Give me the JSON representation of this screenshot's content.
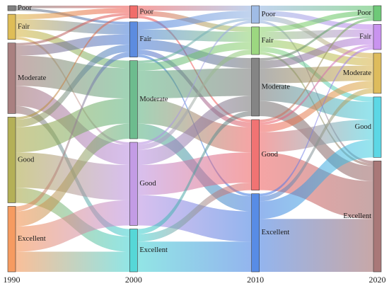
{
  "chart_data": {
    "type": "sankey",
    "title": "",
    "stages": [
      "1990",
      "2000",
      "2010",
      "2020"
    ],
    "categories": [
      "Poor",
      "Fair",
      "Moderate",
      "Good",
      "Excellent"
    ],
    "node_colors": {
      "1990": {
        "Poor": "#6b6b6b",
        "Fair": "#d9b23a",
        "Moderate": "#9a6a6a",
        "Good": "#a7a23a",
        "Excellent": "#f58a45"
      },
      "2000": {
        "Poor": "#ef5350",
        "Fair": "#3f78d9",
        "Moderate": "#53b07a",
        "Good": "#b88be0",
        "Excellent": "#38d0d0"
      },
      "2010": {
        "Poor": "#8fb0e0",
        "Fair": "#8bd06a",
        "Moderate": "#707070",
        "Good": "#ee5a5a",
        "Excellent": "#3b78e0"
      },
      "2020": {
        "Poor": "#55c060",
        "Fair": "#c080ec",
        "Moderate": "#d8b040",
        "Good": "#40d0e0",
        "Excellent": "#9a6060"
      }
    },
    "node_values": {
      "1990": {
        "Poor": 2,
        "Fair": 10,
        "Moderate": 28,
        "Good": 34,
        "Excellent": 26
      },
      "2000": {
        "Poor": 5,
        "Fair": 14,
        "Moderate": 31,
        "Good": 33,
        "Excellent": 17
      },
      "2010": {
        "Poor": 7,
        "Fair": 11,
        "Moderate": 23,
        "Good": 28,
        "Excellent": 31
      },
      "2020": {
        "Poor": 6,
        "Fair": 10,
        "Moderate": 16,
        "Good": 24,
        "Excellent": 44
      }
    },
    "flows": [
      {
        "from_stage": "1990",
        "to_stage": "2000",
        "from": "Poor",
        "to": "Poor",
        "value": 1
      },
      {
        "from_stage": "1990",
        "to_stage": "2000",
        "from": "Poor",
        "to": "Fair",
        "value": 1
      },
      {
        "from_stage": "1990",
        "to_stage": "2000",
        "from": "Fair",
        "to": "Poor",
        "value": 2
      },
      {
        "from_stage": "1990",
        "to_stage": "2000",
        "from": "Fair",
        "to": "Fair",
        "value": 4
      },
      {
        "from_stage": "1990",
        "to_stage": "2000",
        "from": "Fair",
        "to": "Moderate",
        "value": 3
      },
      {
        "from_stage": "1990",
        "to_stage": "2000",
        "from": "Fair",
        "to": "Good",
        "value": 1
      },
      {
        "from_stage": "1990",
        "to_stage": "2000",
        "from": "Moderate",
        "to": "Poor",
        "value": 1
      },
      {
        "from_stage": "1990",
        "to_stage": "2000",
        "from": "Moderate",
        "to": "Fair",
        "value": 4
      },
      {
        "from_stage": "1990",
        "to_stage": "2000",
        "from": "Moderate",
        "to": "Moderate",
        "value": 12
      },
      {
        "from_stage": "1990",
        "to_stage": "2000",
        "from": "Moderate",
        "to": "Good",
        "value": 8
      },
      {
        "from_stage": "1990",
        "to_stage": "2000",
        "from": "Moderate",
        "to": "Excellent",
        "value": 3
      },
      {
        "from_stage": "1990",
        "to_stage": "2000",
        "from": "Good",
        "to": "Poor",
        "value": 1
      },
      {
        "from_stage": "1990",
        "to_stage": "2000",
        "from": "Good",
        "to": "Fair",
        "value": 3
      },
      {
        "from_stage": "1990",
        "to_stage": "2000",
        "from": "Good",
        "to": "Moderate",
        "value": 10
      },
      {
        "from_stage": "1990",
        "to_stage": "2000",
        "from": "Good",
        "to": "Good",
        "value": 14
      },
      {
        "from_stage": "1990",
        "to_stage": "2000",
        "from": "Good",
        "to": "Excellent",
        "value": 6
      },
      {
        "from_stage": "1990",
        "to_stage": "2000",
        "from": "Excellent",
        "to": "Fair",
        "value": 2
      },
      {
        "from_stage": "1990",
        "to_stage": "2000",
        "from": "Excellent",
        "to": "Moderate",
        "value": 6
      },
      {
        "from_stage": "1990",
        "to_stage": "2000",
        "from": "Excellent",
        "to": "Good",
        "value": 10
      },
      {
        "from_stage": "1990",
        "to_stage": "2000",
        "from": "Excellent",
        "to": "Excellent",
        "value": 8
      },
      {
        "from_stage": "2000",
        "to_stage": "2010",
        "from": "Poor",
        "to": "Poor",
        "value": 2
      },
      {
        "from_stage": "2000",
        "to_stage": "2010",
        "from": "Poor",
        "to": "Fair",
        "value": 2
      },
      {
        "from_stage": "2000",
        "to_stage": "2010",
        "from": "Poor",
        "to": "Good",
        "value": 1
      },
      {
        "from_stage": "2000",
        "to_stage": "2010",
        "from": "Fair",
        "to": "Poor",
        "value": 3
      },
      {
        "from_stage": "2000",
        "to_stage": "2010",
        "from": "Fair",
        "to": "Fair",
        "value": 4
      },
      {
        "from_stage": "2000",
        "to_stage": "2010",
        "from": "Fair",
        "to": "Moderate",
        "value": 4
      },
      {
        "from_stage": "2000",
        "to_stage": "2010",
        "from": "Fair",
        "to": "Good",
        "value": 2
      },
      {
        "from_stage": "2000",
        "to_stage": "2010",
        "from": "Fair",
        "to": "Excellent",
        "value": 1
      },
      {
        "from_stage": "2000",
        "to_stage": "2010",
        "from": "Moderate",
        "to": "Poor",
        "value": 1
      },
      {
        "from_stage": "2000",
        "to_stage": "2010",
        "from": "Moderate",
        "to": "Fair",
        "value": 3
      },
      {
        "from_stage": "2000",
        "to_stage": "2010",
        "from": "Moderate",
        "to": "Moderate",
        "value": 11
      },
      {
        "from_stage": "2000",
        "to_stage": "2010",
        "from": "Moderate",
        "to": "Good",
        "value": 10
      },
      {
        "from_stage": "2000",
        "to_stage": "2010",
        "from": "Moderate",
        "to": "Excellent",
        "value": 6
      },
      {
        "from_stage": "2000",
        "to_stage": "2010",
        "from": "Good",
        "to": "Poor",
        "value": 1
      },
      {
        "from_stage": "2000",
        "to_stage": "2010",
        "from": "Good",
        "to": "Fair",
        "value": 2
      },
      {
        "from_stage": "2000",
        "to_stage": "2010",
        "from": "Good",
        "to": "Moderate",
        "value": 6
      },
      {
        "from_stage": "2000",
        "to_stage": "2010",
        "from": "Good",
        "to": "Good",
        "value": 12
      },
      {
        "from_stage": "2000",
        "to_stage": "2010",
        "from": "Good",
        "to": "Excellent",
        "value": 12
      },
      {
        "from_stage": "2000",
        "to_stage": "2010",
        "from": "Excellent",
        "to": "Moderate",
        "value": 2
      },
      {
        "from_stage": "2000",
        "to_stage": "2010",
        "from": "Excellent",
        "to": "Good",
        "value": 3
      },
      {
        "from_stage": "2000",
        "to_stage": "2010",
        "from": "Excellent",
        "to": "Excellent",
        "value": 12
      },
      {
        "from_stage": "2010",
        "to_stage": "2020",
        "from": "Poor",
        "to": "Poor",
        "value": 2
      },
      {
        "from_stage": "2010",
        "to_stage": "2020",
        "from": "Poor",
        "to": "Fair",
        "value": 2
      },
      {
        "from_stage": "2010",
        "to_stage": "2020",
        "from": "Poor",
        "to": "Moderate",
        "value": 2
      },
      {
        "from_stage": "2010",
        "to_stage": "2020",
        "from": "Poor",
        "to": "Excellent",
        "value": 1
      },
      {
        "from_stage": "2010",
        "to_stage": "2020",
        "from": "Fair",
        "to": "Poor",
        "value": 2
      },
      {
        "from_stage": "2010",
        "to_stage": "2020",
        "from": "Fair",
        "to": "Fair",
        "value": 3
      },
      {
        "from_stage": "2010",
        "to_stage": "2020",
        "from": "Fair",
        "to": "Moderate",
        "value": 3
      },
      {
        "from_stage": "2010",
        "to_stage": "2020",
        "from": "Fair",
        "to": "Good",
        "value": 2
      },
      {
        "from_stage": "2010",
        "to_stage": "2020",
        "from": "Fair",
        "to": "Excellent",
        "value": 1
      },
      {
        "from_stage": "2010",
        "to_stage": "2020",
        "from": "Moderate",
        "to": "Poor",
        "value": 1
      },
      {
        "from_stage": "2010",
        "to_stage": "2020",
        "from": "Moderate",
        "to": "Fair",
        "value": 3
      },
      {
        "from_stage": "2010",
        "to_stage": "2020",
        "from": "Moderate",
        "to": "Moderate",
        "value": 6
      },
      {
        "from_stage": "2010",
        "to_stage": "2020",
        "from": "Moderate",
        "to": "Good",
        "value": 7
      },
      {
        "from_stage": "2010",
        "to_stage": "2020",
        "from": "Moderate",
        "to": "Excellent",
        "value": 6
      },
      {
        "from_stage": "2010",
        "to_stage": "2020",
        "from": "Good",
        "to": "Poor",
        "value": 1
      },
      {
        "from_stage": "2010",
        "to_stage": "2020",
        "from": "Good",
        "to": "Fair",
        "value": 1
      },
      {
        "from_stage": "2010",
        "to_stage": "2020",
        "from": "Good",
        "to": "Moderate",
        "value": 3
      },
      {
        "from_stage": "2010",
        "to_stage": "2020",
        "from": "Good",
        "to": "Good",
        "value": 8
      },
      {
        "from_stage": "2010",
        "to_stage": "2020",
        "from": "Good",
        "to": "Excellent",
        "value": 15
      },
      {
        "from_stage": "2010",
        "to_stage": "2020",
        "from": "Excellent",
        "to": "Fair",
        "value": 1
      },
      {
        "from_stage": "2010",
        "to_stage": "2020",
        "from": "Excellent",
        "to": "Moderate",
        "value": 2
      },
      {
        "from_stage": "2010",
        "to_stage": "2020",
        "from": "Excellent",
        "to": "Good",
        "value": 7
      },
      {
        "from_stage": "2010",
        "to_stage": "2020",
        "from": "Excellent",
        "to": "Excellent",
        "value": 21
      }
    ],
    "xlabel": "",
    "ylabel": "",
    "grid": false,
    "legend": "none"
  }
}
